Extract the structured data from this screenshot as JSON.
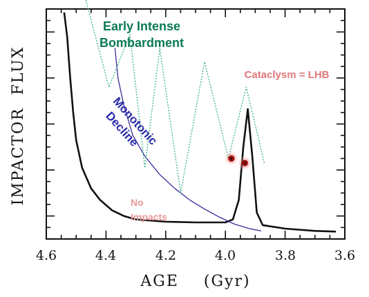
{
  "chart_data": {
    "type": "line",
    "xlabel": "AGE    (Gyr)",
    "ylabel": "IMPACTOR  FLUX",
    "x_ticks": [
      "4.6",
      "4.4",
      "4.2",
      "4.0",
      "3.8",
      "3.6"
    ],
    "xlim": [
      4.6,
      3.6
    ],
    "ylim": [
      0,
      1
    ],
    "x_reversed": true,
    "y_ticks_labeled": false,
    "grid": false,
    "series": [
      {
        "name": "Cataclysm = LHB",
        "color": "#111111",
        "style": "solid",
        "points": [
          [
            4.54,
            0.985
          ],
          [
            4.53,
            0.88
          ],
          [
            4.52,
            0.7
          ],
          [
            4.51,
            0.55
          ],
          [
            4.5,
            0.43
          ],
          [
            4.48,
            0.31
          ],
          [
            4.45,
            0.22
          ],
          [
            4.42,
            0.17
          ],
          [
            4.38,
            0.125
          ],
          [
            4.34,
            0.1
          ],
          [
            4.3,
            0.085
          ],
          [
            4.2,
            0.075
          ],
          [
            4.1,
            0.072
          ],
          [
            4.0,
            0.072
          ],
          [
            3.975,
            0.085
          ],
          [
            3.955,
            0.17
          ],
          [
            3.94,
            0.4
          ],
          [
            3.925,
            0.565
          ],
          [
            3.91,
            0.36
          ],
          [
            3.895,
            0.115
          ],
          [
            3.875,
            0.06
          ],
          [
            3.8,
            0.045
          ],
          [
            3.7,
            0.035
          ],
          [
            3.63,
            0.032
          ]
        ]
      },
      {
        "name": "Monotonic Decline",
        "color": "#3a2a9a",
        "style": "solid",
        "points": [
          [
            4.37,
            0.83
          ],
          [
            4.36,
            0.7
          ],
          [
            4.34,
            0.58
          ],
          [
            4.31,
            0.45
          ],
          [
            4.27,
            0.36
          ],
          [
            4.22,
            0.28
          ],
          [
            4.17,
            0.22
          ],
          [
            4.12,
            0.17
          ],
          [
            4.07,
            0.13
          ],
          [
            4.02,
            0.095
          ],
          [
            3.97,
            0.065
          ],
          [
            3.92,
            0.045
          ],
          [
            3.88,
            0.035
          ]
        ]
      },
      {
        "name": "Early Intense Bombardment",
        "color": "#3aaf8f",
        "style": "dotted",
        "points": [
          [
            4.47,
            1.05
          ],
          [
            4.39,
            0.66
          ],
          [
            4.32,
            0.89
          ],
          [
            4.27,
            0.31
          ],
          [
            4.22,
            0.83
          ],
          [
            4.15,
            0.2
          ],
          [
            4.07,
            0.77
          ],
          [
            3.99,
            0.35
          ],
          [
            3.93,
            0.66
          ],
          [
            3.87,
            0.33
          ]
        ]
      }
    ],
    "markers": [
      {
        "name": "data point",
        "x": 3.98,
        "y": 0.35
      },
      {
        "name": "data point",
        "x": 3.935,
        "y": 0.33
      }
    ],
    "annotations": {
      "early": {
        "line1": "Early Intense",
        "line2": "Bombardment",
        "color": "#0b7a55"
      },
      "monotonic": {
        "line1": "Monotonic",
        "line2": "Decline",
        "color": "#2a2aa8"
      },
      "cataclysm": {
        "text": "Cataclysm = LHB",
        "color": "#e07a7a"
      },
      "no_impacts": {
        "line1": "No",
        "line2": "Impacts",
        "color": "#e89a9a"
      }
    }
  }
}
